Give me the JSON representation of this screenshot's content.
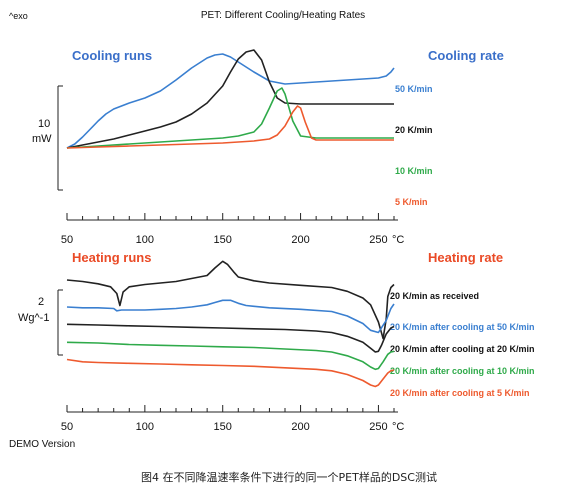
{
  "header": {
    "exo_label": "^exo",
    "title": "PET: Different Cooling/Heating Rates"
  },
  "footer": {
    "demo_label": "DEMO Version",
    "caption": "图4  在不同降温速率条件下进行的同一个PET样品的DSC测试"
  },
  "colors": {
    "blue": "#3a7fd0",
    "black": "#222222",
    "green": "#2faa4a",
    "red": "#ee5a2e",
    "blue_heading": "#3a6fc9",
    "red_heading": "#ea4a26"
  },
  "chart_data": [
    {
      "type": "line",
      "panel": "top",
      "heading_left": "Cooling runs",
      "heading_right": "Cooling rate",
      "scale_value": "10",
      "scale_unit": "mW",
      "x_ticks": [
        "50",
        "100",
        "150",
        "200",
        "250"
      ],
      "x_unit": "°C",
      "xlim": [
        50,
        260
      ],
      "series": [
        {
          "name": "50 K/min",
          "color": "#3a7fd0",
          "x": [
            50,
            55,
            60,
            65,
            70,
            75,
            80,
            90,
            100,
            110,
            120,
            130,
            140,
            145,
            150,
            155,
            160,
            170,
            180,
            190,
            200,
            210,
            220,
            230,
            240,
            250,
            255,
            258,
            260
          ],
          "y": [
            0.0,
            0.4,
            1.1,
            1.9,
            2.7,
            3.4,
            3.9,
            4.5,
            5.0,
            5.7,
            6.8,
            8.0,
            9.0,
            9.3,
            9.4,
            9.1,
            8.6,
            7.6,
            6.7,
            6.4,
            6.5,
            6.6,
            6.7,
            6.8,
            6.9,
            7.0,
            7.2,
            7.6,
            8.0
          ]
        },
        {
          "name": "20 K/min",
          "color": "#222222",
          "x": [
            50,
            60,
            70,
            80,
            90,
            100,
            110,
            120,
            130,
            140,
            150,
            155,
            160,
            165,
            170,
            175,
            180,
            185,
            190,
            200,
            210,
            220,
            230,
            240,
            250,
            260
          ],
          "y": [
            0.0,
            0.3,
            0.6,
            0.9,
            1.3,
            1.7,
            2.1,
            2.6,
            3.4,
            4.5,
            6.2,
            7.6,
            8.9,
            9.6,
            9.8,
            8.8,
            6.6,
            5.0,
            4.5,
            4.4,
            4.4,
            4.4,
            4.4,
            4.4,
            4.4,
            4.4
          ]
        },
        {
          "name": "10 K/min",
          "color": "#2faa4a",
          "x": [
            50,
            70,
            90,
            110,
            130,
            150,
            160,
            170,
            175,
            180,
            185,
            188,
            190,
            195,
            200,
            210,
            220,
            240,
            260
          ],
          "y": [
            0.0,
            0.2,
            0.4,
            0.6,
            0.8,
            1.0,
            1.2,
            1.6,
            2.4,
            4.0,
            5.7,
            6.0,
            5.4,
            2.7,
            1.2,
            1.0,
            1.0,
            1.0,
            1.0
          ]
        },
        {
          "name": "5 K/min",
          "color": "#ee5a2e",
          "x": [
            50,
            70,
            90,
            110,
            130,
            150,
            170,
            180,
            185,
            190,
            195,
            198,
            200,
            203,
            207,
            210,
            220,
            240,
            260
          ],
          "y": [
            0.0,
            0.1,
            0.2,
            0.3,
            0.4,
            0.5,
            0.7,
            0.9,
            1.3,
            2.2,
            3.6,
            4.2,
            4.0,
            2.6,
            1.0,
            0.8,
            0.8,
            0.8,
            0.8
          ]
        }
      ]
    },
    {
      "type": "line",
      "panel": "bottom",
      "heading_left": "Heating runs",
      "heading_right": "Heating rate",
      "scale_value": "2",
      "scale_unit": "Wg^-1",
      "x_ticks": [
        "50",
        "100",
        "150",
        "200",
        "250"
      ],
      "x_unit": "°C",
      "xlim": [
        50,
        260
      ],
      "series": [
        {
          "name": "20 K/min as received",
          "color": "#222222",
          "x": [
            50,
            60,
            70,
            78,
            82,
            84,
            86,
            90,
            100,
            120,
            140,
            145,
            150,
            153,
            157,
            160,
            170,
            180,
            200,
            220,
            230,
            240,
            245,
            250,
            253,
            255,
            256,
            258,
            260
          ],
          "y": [
            0.0,
            -0.2,
            -0.5,
            -0.9,
            -1.8,
            -3.4,
            -1.6,
            -0.9,
            -0.6,
            -0.2,
            0.6,
            1.6,
            2.5,
            2.1,
            1.1,
            0.4,
            -0.1,
            -0.4,
            -0.7,
            -1.0,
            -1.5,
            -2.4,
            -3.3,
            -5.6,
            -7.8,
            -5.2,
            -2.2,
            -1.0,
            -0.6
          ]
        },
        {
          "name": "20 K/min after cooling at 50 K/min",
          "color": "#3a7fd0",
          "x": [
            50,
            60,
            70,
            80,
            82,
            85,
            90,
            100,
            110,
            120,
            130,
            140,
            145,
            150,
            155,
            160,
            165,
            170,
            180,
            200,
            220,
            230,
            240,
            245,
            250,
            255,
            258,
            260
          ],
          "y": [
            -3.6,
            -3.7,
            -3.7,
            -3.8,
            -4.1,
            -4.0,
            -4.0,
            -4.0,
            -3.9,
            -3.8,
            -3.6,
            -3.3,
            -3.0,
            -2.7,
            -2.7,
            -3.1,
            -3.4,
            -3.5,
            -3.7,
            -3.9,
            -4.2,
            -4.8,
            -5.8,
            -6.7,
            -7.0,
            -5.4,
            -3.8,
            -3.2
          ]
        },
        {
          "name": "20 K/min after cooling at 20 K/min",
          "color": "#222222",
          "x": [
            50,
            70,
            90,
            110,
            130,
            150,
            170,
            190,
            210,
            220,
            230,
            240,
            245,
            248,
            250,
            252,
            255,
            258,
            260
          ],
          "y": [
            -5.9,
            -6.0,
            -6.1,
            -6.2,
            -6.3,
            -6.4,
            -6.5,
            -6.6,
            -6.8,
            -7.0,
            -7.5,
            -8.3,
            -9.1,
            -9.6,
            -9.5,
            -8.7,
            -7.2,
            -6.4,
            -6.2
          ]
        },
        {
          "name": "20 K/min after cooling at 10 K/min",
          "color": "#2faa4a",
          "x": [
            50,
            70,
            90,
            110,
            130,
            150,
            170,
            190,
            210,
            220,
            230,
            240,
            245,
            248,
            250,
            253,
            256,
            258,
            260
          ],
          "y": [
            -8.3,
            -8.4,
            -8.6,
            -8.7,
            -8.8,
            -8.9,
            -9.0,
            -9.2,
            -9.4,
            -9.6,
            -10.1,
            -10.9,
            -11.6,
            -11.9,
            -11.8,
            -10.9,
            -9.9,
            -9.6,
            -9.5
          ]
        },
        {
          "name": "20 K/min after cooling at 5 K/min",
          "color": "#ee5a2e",
          "x": [
            50,
            60,
            70,
            90,
            110,
            130,
            150,
            170,
            190,
            210,
            220,
            230,
            240,
            245,
            248,
            250,
            253,
            256,
            258,
            260
          ],
          "y": [
            -10.6,
            -10.9,
            -11.0,
            -11.1,
            -11.2,
            -11.3,
            -11.4,
            -11.5,
            -11.7,
            -11.9,
            -12.1,
            -12.6,
            -13.4,
            -14.0,
            -14.2,
            -14.0,
            -13.2,
            -12.4,
            -12.1,
            -12.0
          ]
        }
      ]
    }
  ]
}
